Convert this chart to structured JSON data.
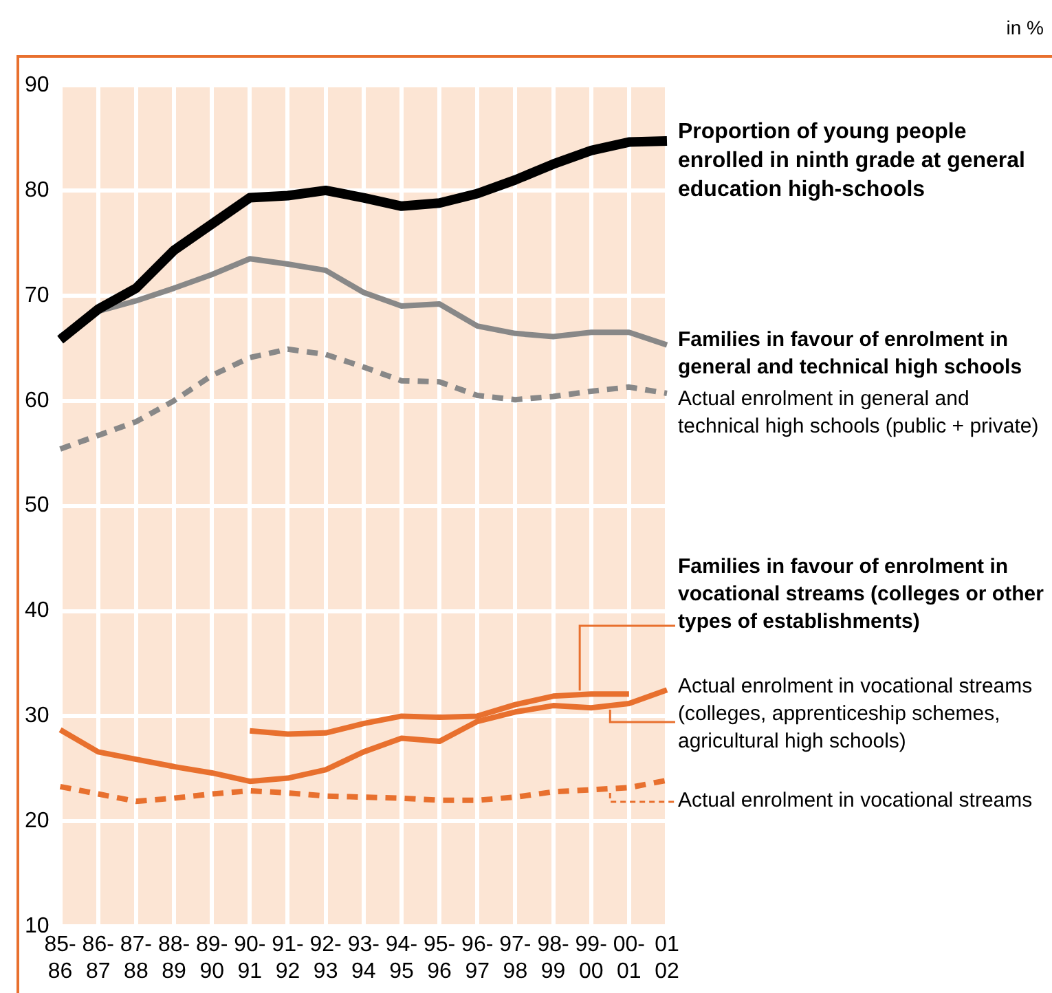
{
  "chart_data": {
    "type": "line",
    "annotations": [
      "in %"
    ],
    "categories": [
      "85-\n86",
      "86-\n87",
      "87-\n88",
      "88-\n89",
      "89-\n90",
      "90-\n91",
      "91-\n92",
      "92-\n93",
      "93-\n94",
      "94-\n95",
      "95-\n96",
      "96-\n97",
      "97-\n98",
      "98-\n99",
      "99-\n00",
      "00-\n01",
      "01\n02"
    ],
    "ylim": [
      10,
      90
    ],
    "yticks": [
      10,
      20,
      30,
      40,
      50,
      60,
      70,
      80,
      90
    ],
    "grid": true,
    "legend": "right",
    "marker": "none",
    "series": [
      {
        "name": "Proportion of young people enrolled in ninth grade at general education high-schools",
        "color": "#000000",
        "line_style": "solid",
        "values": [
          65.8,
          68.7,
          70.7,
          74.3,
          76.8,
          79.3,
          79.5,
          80.0,
          79.3,
          78.5,
          78.8,
          79.7,
          81.0,
          82.5,
          83.8,
          84.6,
          84.7
        ]
      },
      {
        "name": "Families in favour of enrolment in general and technical high schools",
        "color": "#888888",
        "line_style": "solid",
        "values": [
          66.1,
          68.5,
          69.5,
          70.7,
          72.0,
          73.5,
          73.0,
          72.4,
          70.3,
          69.0,
          69.2,
          67.1,
          66.4,
          66.1,
          66.5,
          66.5,
          65.3
        ]
      },
      {
        "name": "Actual enrolment in general and technical high schools (public + private)",
        "color": "#888888",
        "line_style": "dashed",
        "values": [
          55.4,
          56.7,
          58.0,
          60.0,
          62.4,
          64.1,
          64.9,
          64.4,
          63.2,
          61.9,
          61.8,
          60.5,
          60.1,
          60.4,
          60.9,
          61.3,
          60.7
        ]
      },
      {
        "name": "Families in favour of enrolment in vocational streams (colleges or other types of establishments)",
        "color": "#e8702e",
        "line_style": "solid",
        "values": [
          null,
          null,
          null,
          null,
          null,
          28.6,
          28.3,
          28.4,
          29.3,
          30.0,
          29.9,
          30.0,
          31.1,
          31.9,
          32.1,
          32.1,
          null
        ]
      },
      {
        "name": "Actual enrolment in vocational streams (colleges, apprenticeship schemes, agricultural high schools)",
        "color": "#e8702e",
        "line_style": "solid",
        "values": [
          28.7,
          26.6,
          25.9,
          25.2,
          24.6,
          23.8,
          24.1,
          24.9,
          26.6,
          27.9,
          27.6,
          29.5,
          30.4,
          31.0,
          30.8,
          31.2,
          32.5
        ]
      },
      {
        "name": "Actual enrolment in vocational streams",
        "color": "#e8702e",
        "line_style": "dashed",
        "values": [
          23.3,
          22.6,
          21.9,
          22.2,
          22.6,
          22.9,
          22.7,
          22.4,
          22.3,
          22.2,
          22.0,
          22.0,
          22.3,
          22.8,
          23.0,
          23.2,
          23.9
        ]
      }
    ]
  }
}
